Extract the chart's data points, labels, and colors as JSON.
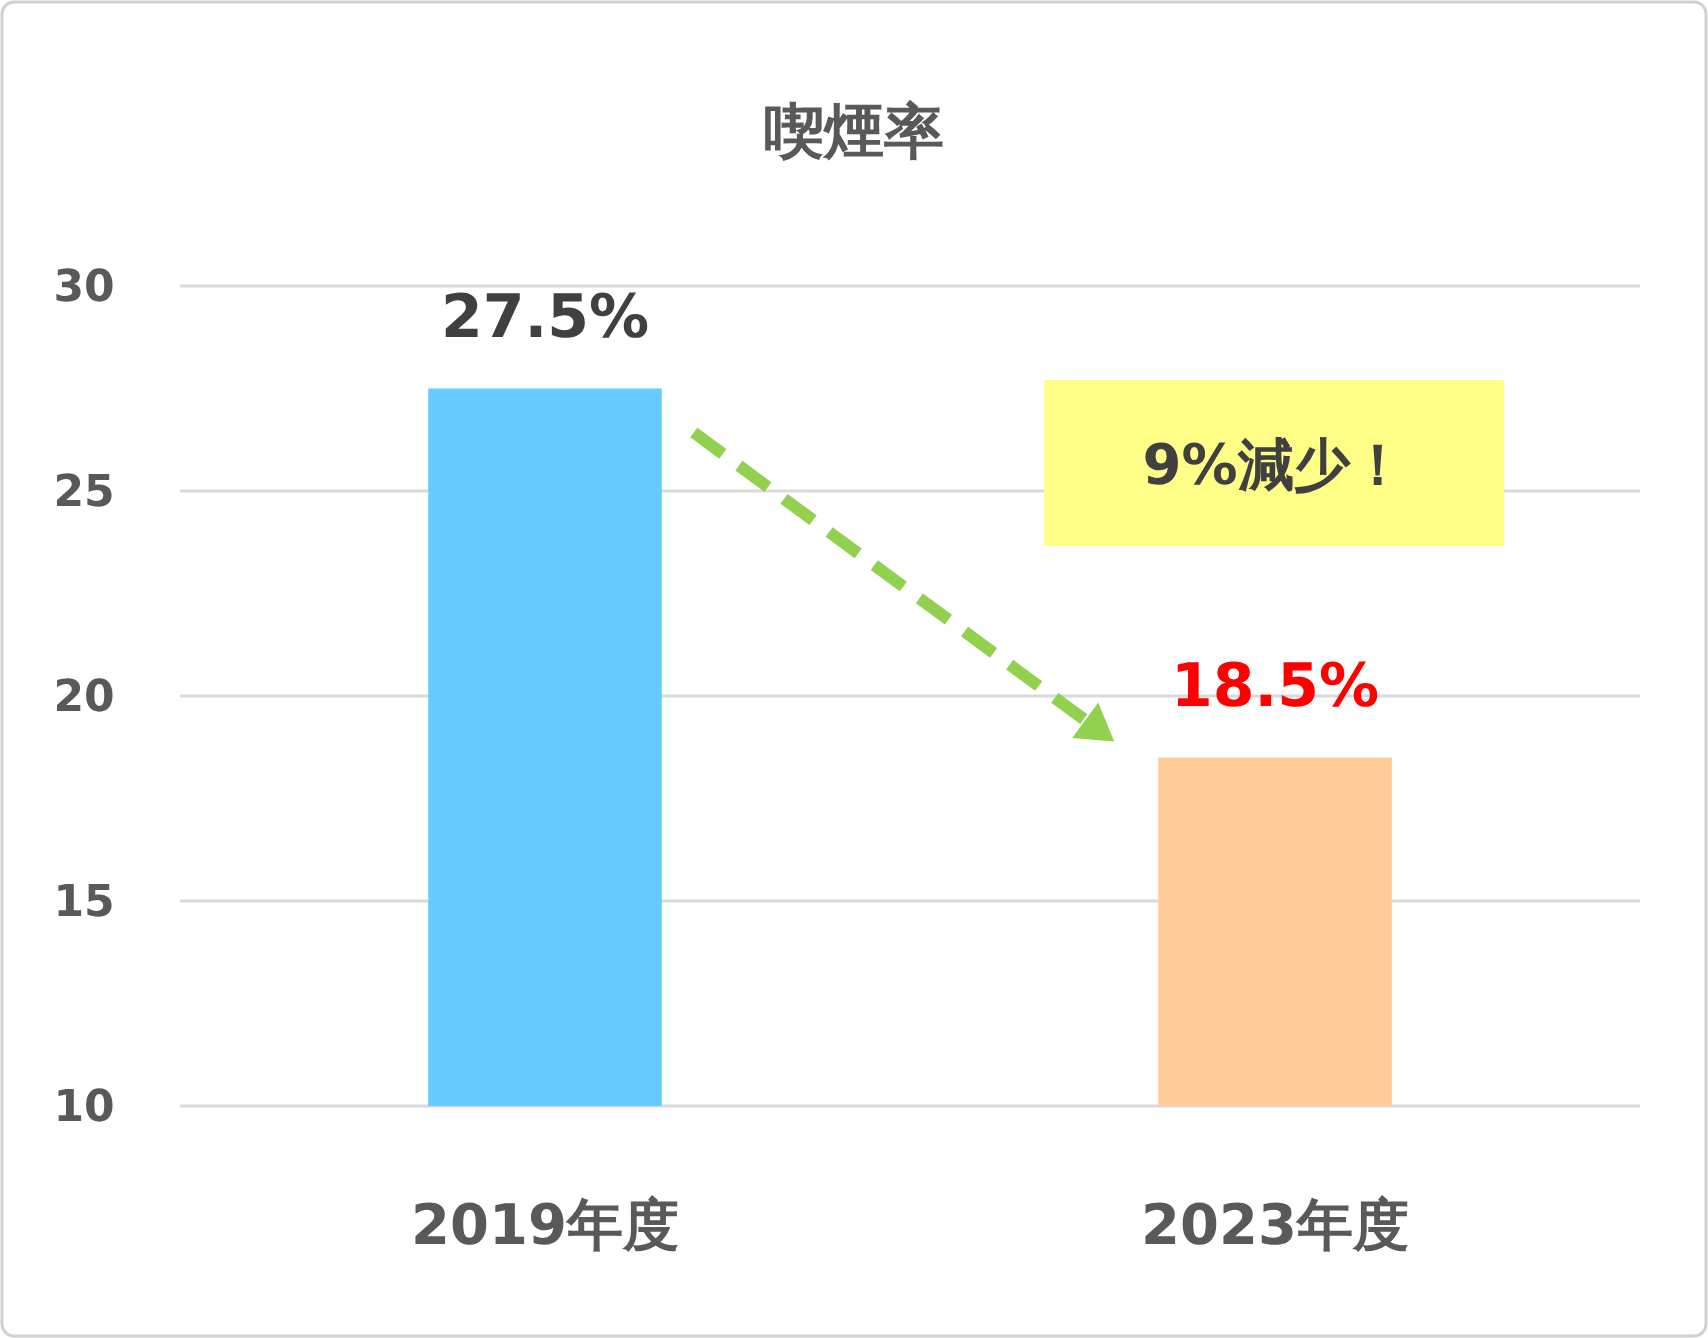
{
  "chart_data": {
    "type": "bar",
    "title": "喫煙率",
    "categories": [
      "2019年度",
      "2023年度"
    ],
    "values": [
      27.5,
      18.5
    ],
    "colors": [
      "#66ccff",
      "#ffcc99"
    ],
    "value_labels": [
      "27.5%",
      "18.5%"
    ],
    "ylim": [
      10,
      30
    ],
    "yticks": [
      10,
      15,
      20,
      25,
      30
    ],
    "grid": "y",
    "annotations": [
      "9%減少！"
    ]
  }
}
